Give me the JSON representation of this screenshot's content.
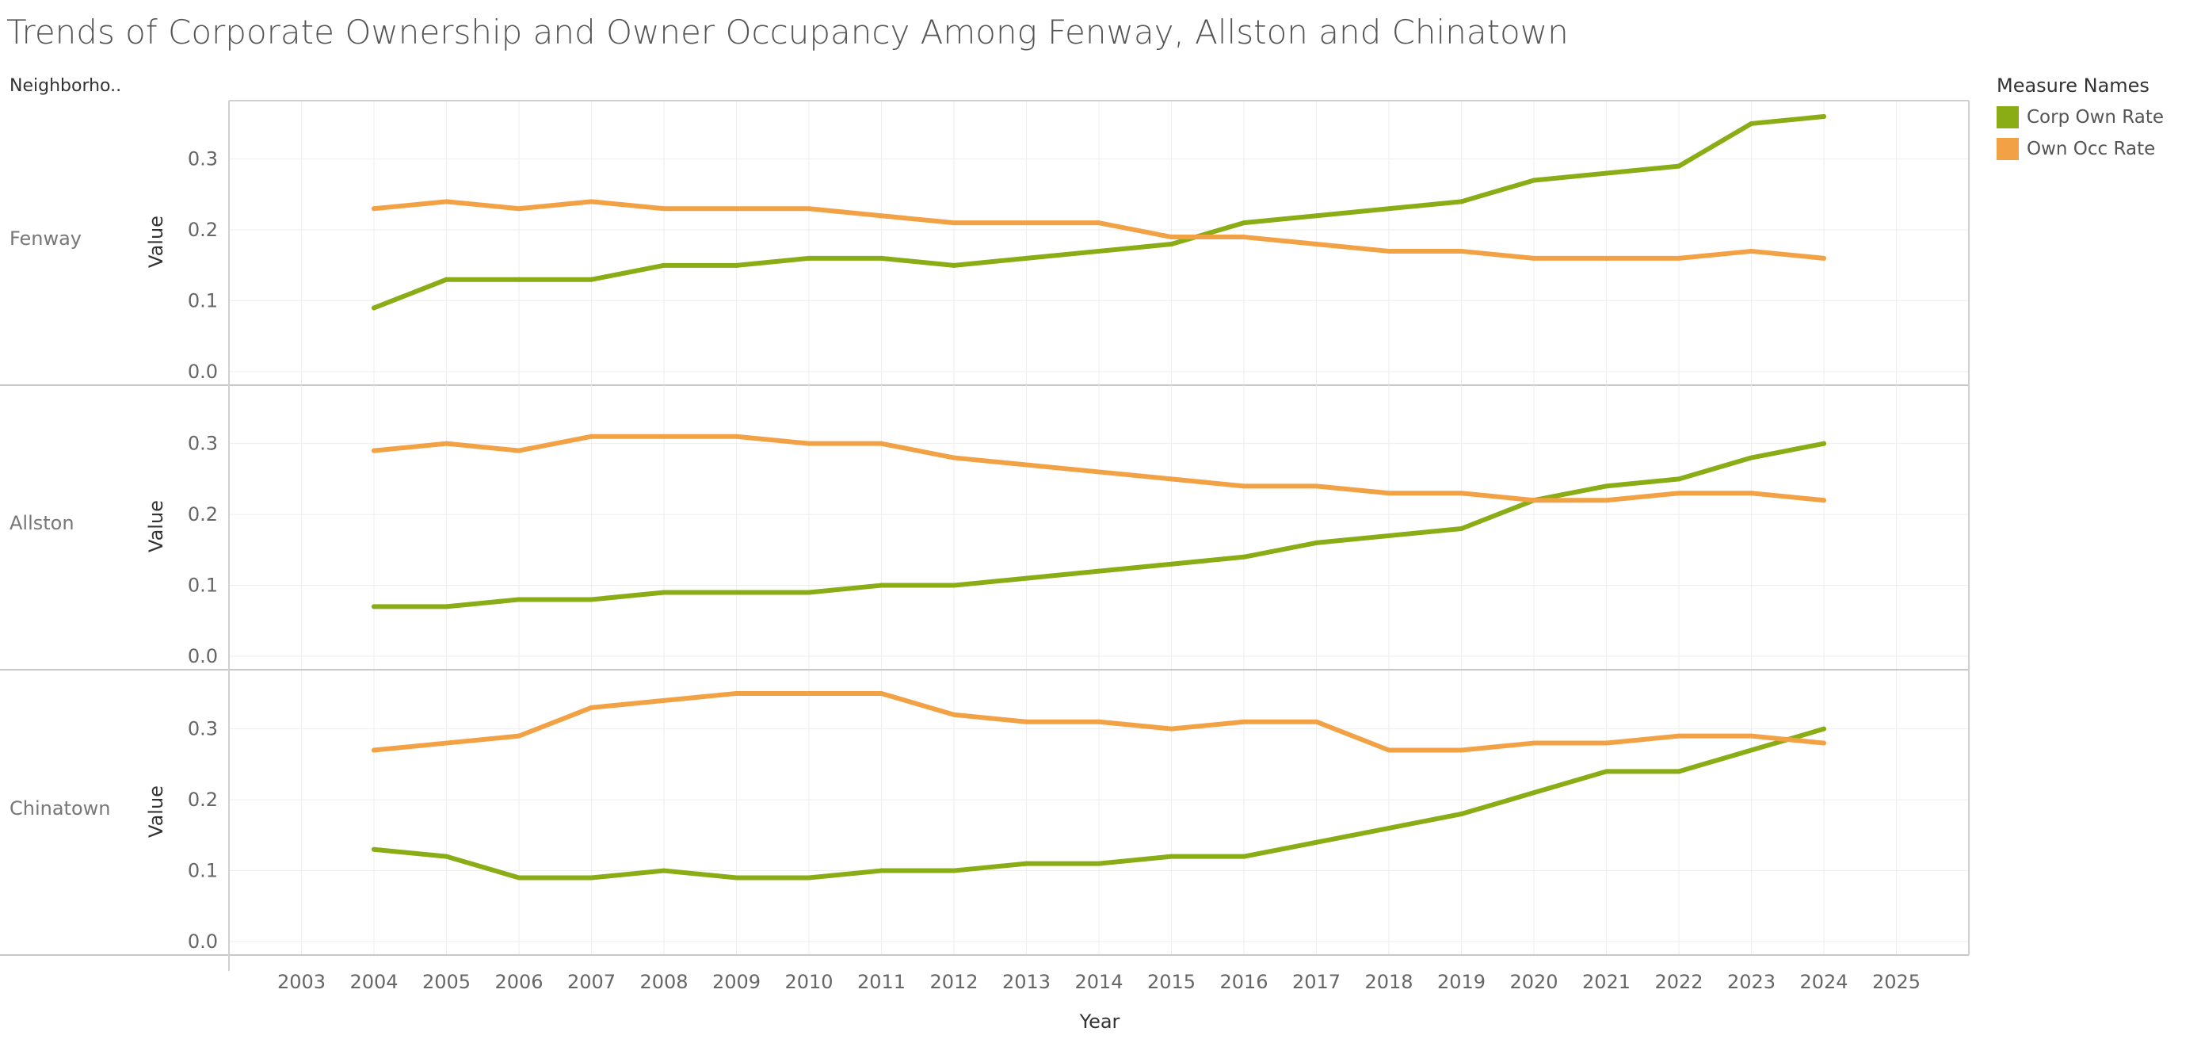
{
  "chart_data": {
    "type": "line",
    "title": "Trends of Corporate Ownership and Owner Occupancy Among Fenway, Allston and Chinatown",
    "row_header": "Neighborho..",
    "xlabel": "Year",
    "ylabel": "Value",
    "x": [
      2004,
      2005,
      2006,
      2007,
      2008,
      2009,
      2010,
      2011,
      2012,
      2013,
      2014,
      2015,
      2016,
      2017,
      2018,
      2019,
      2020,
      2021,
      2022,
      2023,
      2024
    ],
    "x_ticks": [
      2003,
      2004,
      2005,
      2006,
      2007,
      2008,
      2009,
      2010,
      2011,
      2012,
      2013,
      2014,
      2015,
      2016,
      2017,
      2018,
      2019,
      2020,
      2021,
      2022,
      2023,
      2024,
      2025
    ],
    "xlim": [
      2002,
      2026
    ],
    "ylim": [
      0,
      0.36
    ],
    "y_ticks": [
      "0.0",
      "0.1",
      "0.2",
      "0.3"
    ],
    "grid": true,
    "legend": {
      "title": "Measure Names",
      "position": "top-right",
      "entries": [
        {
          "name": "Corp Own Rate",
          "color": "#8aac14"
        },
        {
          "name": "Own Occ Rate",
          "color": "#f2a245"
        }
      ]
    },
    "panels": [
      {
        "name": "Fenway",
        "series": [
          {
            "name": "Corp Own Rate",
            "color": "#8aac14",
            "values": [
              0.09,
              0.13,
              0.13,
              0.13,
              0.15,
              0.15,
              0.16,
              0.16,
              0.15,
              0.16,
              0.17,
              0.18,
              0.21,
              0.22,
              0.23,
              0.24,
              0.27,
              0.28,
              0.29,
              0.35,
              0.36
            ]
          },
          {
            "name": "Own Occ Rate",
            "color": "#f2a245",
            "values": [
              0.23,
              0.24,
              0.23,
              0.24,
              0.23,
              0.23,
              0.23,
              0.22,
              0.21,
              0.21,
              0.21,
              0.19,
              0.19,
              0.18,
              0.17,
              0.17,
              0.16,
              0.16,
              0.16,
              0.17,
              0.16
            ]
          }
        ]
      },
      {
        "name": "Allston",
        "series": [
          {
            "name": "Corp Own Rate",
            "color": "#8aac14",
            "values": [
              0.07,
              0.07,
              0.08,
              0.08,
              0.09,
              0.09,
              0.09,
              0.1,
              0.1,
              0.11,
              0.12,
              0.13,
              0.14,
              0.16,
              0.17,
              0.18,
              0.22,
              0.24,
              0.25,
              0.28,
              0.3
            ]
          },
          {
            "name": "Own Occ Rate",
            "color": "#f2a245",
            "values": [
              0.29,
              0.3,
              0.29,
              0.31,
              0.31,
              0.31,
              0.3,
              0.3,
              0.28,
              0.27,
              0.26,
              0.25,
              0.24,
              0.24,
              0.23,
              0.23,
              0.22,
              0.22,
              0.23,
              0.23,
              0.22
            ]
          }
        ]
      },
      {
        "name": "Chinatown",
        "series": [
          {
            "name": "Corp Own Rate",
            "color": "#8aac14",
            "values": [
              0.13,
              0.12,
              0.09,
              0.09,
              0.1,
              0.09,
              0.09,
              0.1,
              0.1,
              0.11,
              0.11,
              0.12,
              0.12,
              0.14,
              0.16,
              0.18,
              0.21,
              0.24,
              0.24,
              0.27,
              0.3
            ]
          },
          {
            "name": "Own Occ Rate",
            "color": "#f2a245",
            "values": [
              0.27,
              0.28,
              0.29,
              0.33,
              0.34,
              0.35,
              0.35,
              0.35,
              0.32,
              0.31,
              0.31,
              0.3,
              0.31,
              0.31,
              0.27,
              0.27,
              0.28,
              0.28,
              0.29,
              0.29,
              0.28
            ]
          }
        ]
      }
    ]
  }
}
